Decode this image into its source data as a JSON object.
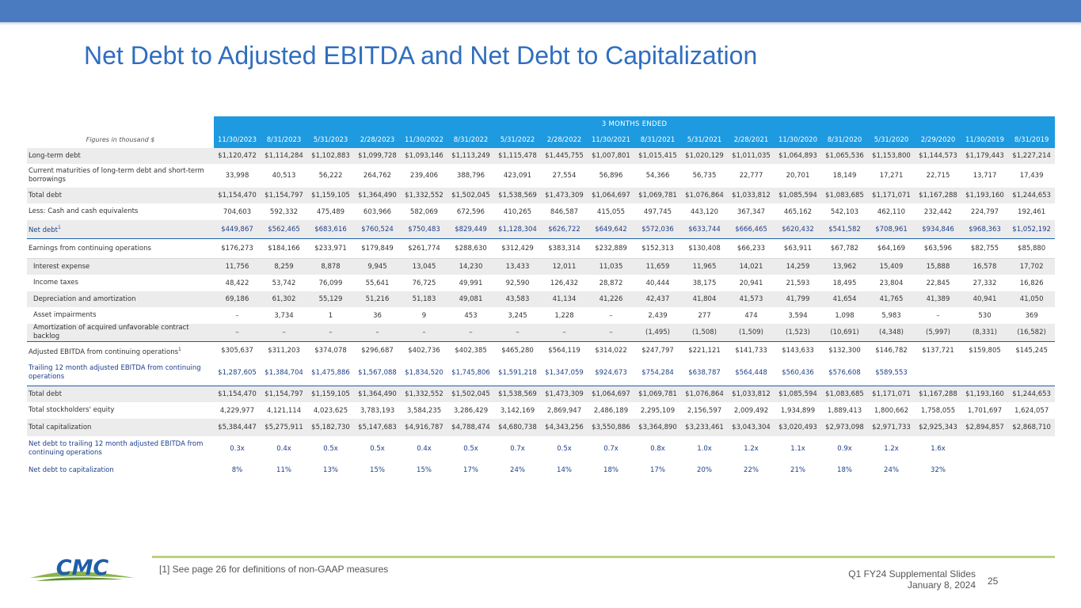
{
  "slide": {
    "title": "Net Debt to Adjusted EBITDA and Net Debt to Capitalization",
    "footnote": "[1] See page 26 for definitions of non-GAAP measures",
    "footer_line1": "Q1 FY24 Supplemental Slides",
    "footer_line2": "January 8, 2024",
    "page_number": "25",
    "logo_text": "CMC",
    "colors": {
      "header_blue": "#1d9ae0",
      "title_blue": "#2f6ec0",
      "top_bar": "#4a7bc0",
      "accent_green": "#bcd27e"
    }
  },
  "table": {
    "figures_label": "Figures in thousand $",
    "group_header": "3 MONTHS ENDED",
    "columns": [
      "11/30/2023",
      "8/31/2023",
      "5/31/2023",
      "2/28/2023",
      "11/30/2022",
      "8/31/2022",
      "5/31/2022",
      "2/28/2022",
      "11/30/2021",
      "8/31/2021",
      "5/31/2021",
      "2/28/2021",
      "11/30/2020",
      "8/31/2020",
      "5/31/2020",
      "2/29/2020",
      "11/30/2019",
      "8/31/2019"
    ],
    "rows": [
      {
        "label": "Long-term debt",
        "values": [
          "$1,120,472",
          "$1,114,284",
          "$1,102,883",
          "$1,099,728",
          "$1,093,146",
          "$1,113,249",
          "$1,115,478",
          "$1,445,755",
          "$1,007,801",
          "$1,015,415",
          "$1,020,129",
          "$1,011,035",
          "$1,064,893",
          "$1,065,536",
          "$1,153,800",
          "$1,144,573",
          "$1,179,443",
          "$1,227,214"
        ]
      },
      {
        "label": "Current maturities of long-term debt and short-term borrowings",
        "values": [
          "33,998",
          "40,513",
          "56,222",
          "264,762",
          "239,406",
          "388,796",
          "423,091",
          "27,554",
          "56,896",
          "54,366",
          "56,735",
          "22,777",
          "20,701",
          "18,149",
          "17,271",
          "22,715",
          "13,717",
          "17,439"
        ]
      },
      {
        "label": "Total debt",
        "values": [
          "$1,154,470",
          "$1,154,797",
          "$1,159,105",
          "$1,364,490",
          "$1,332,552",
          "$1,502,045",
          "$1,538,569",
          "$1,473,309",
          "$1,064,697",
          "$1,069,781",
          "$1,076,864",
          "$1,033,812",
          "$1,085,594",
          "$1,083,685",
          "$1,171,071",
          "$1,167,288",
          "$1,193,160",
          "$1,244,653"
        ]
      },
      {
        "label": "Less: Cash and cash equivalents",
        "values": [
          "704,603",
          "592,332",
          "475,489",
          "603,966",
          "582,069",
          "672,596",
          "410,265",
          "846,587",
          "415,055",
          "497,745",
          "443,120",
          "367,347",
          "465,162",
          "542,103",
          "462,110",
          "232,442",
          "224,797",
          "192,461"
        ]
      },
      {
        "label": "Net debt",
        "sup": "1",
        "values": [
          "$449,867",
          "$562,465",
          "$683,616",
          "$760,524",
          "$750,483",
          "$829,449",
          "$1,128,304",
          "$626,722",
          "$649,642",
          "$572,036",
          "$633,744",
          "$666,465",
          "$620,432",
          "$541,582",
          "$708,961",
          "$934,846",
          "$968,363",
          "$1,052,192"
        ]
      },
      {
        "label": "Earnings from continuing operations",
        "values": [
          "$176,273",
          "$184,166",
          "$233,971",
          "$179,849",
          "$261,774",
          "$288,630",
          "$312,429",
          "$383,314",
          "$232,889",
          "$152,313",
          "$130,408",
          "$66,233",
          "$63,911",
          "$67,782",
          "$64,169",
          "$63,596",
          "$82,755",
          "$85,880"
        ]
      },
      {
        "label": "Interest expense",
        "values": [
          "11,756",
          "8,259",
          "8,878",
          "9,945",
          "13,045",
          "14,230",
          "13,433",
          "12,011",
          "11,035",
          "11,659",
          "11,965",
          "14,021",
          "14,259",
          "13,962",
          "15,409",
          "15,888",
          "16,578",
          "17,702"
        ]
      },
      {
        "label": "Income taxes",
        "values": [
          "48,422",
          "53,742",
          "76,099",
          "55,641",
          "76,725",
          "49,991",
          "92,590",
          "126,432",
          "28,872",
          "40,444",
          "38,175",
          "20,941",
          "21,593",
          "18,495",
          "23,804",
          "22,845",
          "27,332",
          "16,826"
        ]
      },
      {
        "label": "Depreciation and amortization",
        "values": [
          "69,186",
          "61,302",
          "55,129",
          "51,216",
          "51,183",
          "49,081",
          "43,583",
          "41,134",
          "41,226",
          "42,437",
          "41,804",
          "41,573",
          "41,799",
          "41,654",
          "41,765",
          "41,389",
          "40,941",
          "41,050"
        ]
      },
      {
        "label": "Asset impairments",
        "values": [
          "–",
          "3,734",
          "1",
          "36",
          "9",
          "453",
          "3,245",
          "1,228",
          "–",
          "2,439",
          "277",
          "474",
          "3,594",
          "1,098",
          "5,983",
          "–",
          "530",
          "369"
        ]
      },
      {
        "label": "Amortization of acquired unfavorable contract backlog",
        "values": [
          "–",
          "–",
          "–",
          "–",
          "–",
          "–",
          "–",
          "–",
          "–",
          "(1,495)",
          "(1,508)",
          "(1,509)",
          "(1,523)",
          "(10,691)",
          "(4,348)",
          "(5,997)",
          "(8,331)",
          "(16,582)"
        ]
      },
      {
        "label": "Adjusted EBITDA from continuing operations",
        "sup": "1",
        "values": [
          "$305,637",
          "$311,203",
          "$374,078",
          "$296,687",
          "$402,736",
          "$402,385",
          "$465,280",
          "$564,119",
          "$314,022",
          "$247,797",
          "$221,121",
          "$141,733",
          "$143,633",
          "$132,300",
          "$146,782",
          "$137,721",
          "$159,805",
          "$145,245"
        ]
      },
      {
        "label": "Trailing 12 month adjusted EBITDA from continuing operations",
        "values": [
          "$1,287,605",
          "$1,384,704",
          "$1,475,886",
          "$1,567,088",
          "$1,834,520",
          "$1,745,806",
          "$1,591,218",
          "$1,347,059",
          "$924,673",
          "$754,284",
          "$638,787",
          "$564,448",
          "$560,436",
          "$576,608",
          "$589,553",
          "",
          "",
          ""
        ]
      },
      {
        "label": "Total debt",
        "values": [
          "$1,154,470",
          "$1,154,797",
          "$1,159,105",
          "$1,364,490",
          "$1,332,552",
          "$1,502,045",
          "$1,538,569",
          "$1,473,309",
          "$1,064,697",
          "$1,069,781",
          "$1,076,864",
          "$1,033,812",
          "$1,085,594",
          "$1,083,685",
          "$1,171,071",
          "$1,167,288",
          "$1,193,160",
          "$1,244,653"
        ]
      },
      {
        "label": "Total stockholders' equity",
        "values": [
          "4,229,977",
          "4,121,114",
          "4,023,625",
          "3,783,193",
          "3,584,235",
          "3,286,429",
          "3,142,169",
          "2,869,947",
          "2,486,189",
          "2,295,109",
          "2,156,597",
          "2,009,492",
          "1,934,899",
          "1,889,413",
          "1,800,662",
          "1,758,055",
          "1,701,697",
          "1,624,057"
        ]
      },
      {
        "label": "Total capitalization",
        "values": [
          "$5,384,447",
          "$5,275,911",
          "$5,182,730",
          "$5,147,683",
          "$4,916,787",
          "$4,788,474",
          "$4,680,738",
          "$4,343,256",
          "$3,550,886",
          "$3,364,890",
          "$3,233,461",
          "$3,043,304",
          "$3,020,493",
          "$2,973,098",
          "$2,971,733",
          "$2,925,343",
          "$2,894,857",
          "$2,868,710"
        ]
      },
      {
        "label": "Net debt to trailing 12 month adjusted EBITDA from continuing operations",
        "values": [
          "0.3x",
          "0.4x",
          "0.5x",
          "0.5x",
          "0.4x",
          "0.5x",
          "0.7x",
          "0.5x",
          "0.7x",
          "0.8x",
          "1.0x",
          "1.2x",
          "1.1x",
          "0.9x",
          "1.2x",
          "1.6x",
          "",
          ""
        ]
      },
      {
        "label": "Net debt to capitalization",
        "values": [
          "8%",
          "11%",
          "13%",
          "15%",
          "15%",
          "17%",
          "24%",
          "14%",
          "18%",
          "17%",
          "20%",
          "22%",
          "21%",
          "18%",
          "24%",
          "32%",
          "",
          ""
        ]
      }
    ]
  }
}
